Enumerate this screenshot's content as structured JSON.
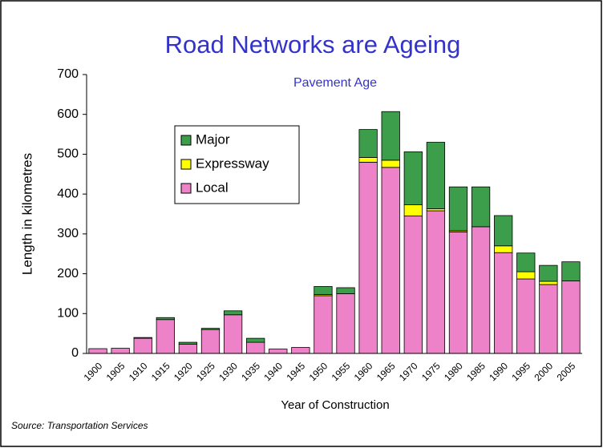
{
  "chart_data": {
    "type": "stacked_bar",
    "title": "Road Networks are Ageing",
    "subtitle": "Pavement Age",
    "y_label": "Length in kilometres",
    "x_label": "Year of Construction",
    "source": "Source:  Transportation Services",
    "categories": [
      "1900",
      "1905",
      "1910",
      "1915",
      "1920",
      "1925",
      "1930",
      "1935",
      "1940",
      "1945",
      "1950",
      "1955",
      "1960",
      "1965",
      "1970",
      "1975",
      "1980",
      "1985",
      "1990",
      "1995",
      "2000",
      "2005"
    ],
    "series": [
      {
        "name": "Local",
        "color": "#ee82c8",
        "values": [
          12,
          13,
          38,
          85,
          23,
          60,
          97,
          28,
          11,
          15,
          145,
          150,
          480,
          467,
          345,
          358,
          305,
          318,
          253,
          187,
          173,
          182
        ]
      },
      {
        "name": "Expressway",
        "color": "#ffff00",
        "values": [
          0,
          0,
          0,
          0,
          0,
          0,
          0,
          0,
          0,
          0,
          3,
          0,
          12,
          18,
          28,
          5,
          3,
          0,
          17,
          18,
          8,
          0
        ]
      },
      {
        "name": "Major",
        "color": "#3c9e4a",
        "values": [
          0,
          0,
          2,
          5,
          5,
          3,
          10,
          10,
          0,
          0,
          20,
          15,
          70,
          122,
          133,
          167,
          110,
          100,
          76,
          47,
          40,
          48
        ]
      }
    ],
    "ylim": [
      0,
      700
    ],
    "yticks": [
      0,
      100,
      200,
      300,
      400,
      500,
      600,
      700
    ]
  }
}
